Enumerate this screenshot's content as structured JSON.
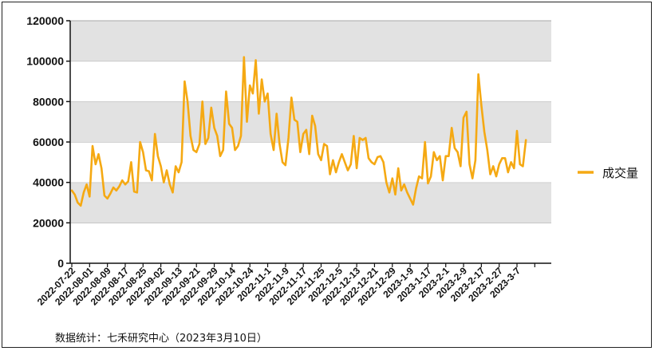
{
  "chart_data": {
    "type": "line",
    "title": "",
    "xlabel": "",
    "ylabel": "",
    "ylim": [
      0,
      120000
    ],
    "yticks": [
      0,
      20000,
      40000,
      60000,
      80000,
      100000,
      120000
    ],
    "grid": "horizontal bands (alternating gray/white)",
    "legend_position": "right",
    "x_tick_labels": [
      "2022-07-22",
      "2022-08-01",
      "2022-08-09",
      "2022-08-17",
      "2022-08-25",
      "2022-09-02",
      "2022-09-13",
      "2022-09-21",
      "2022-09-29",
      "2022-10-14",
      "2022-10-24",
      "2022-11-1",
      "2022-11-9",
      "2022-11-17",
      "2022-11-25",
      "2022-12-5",
      "2022-12-13",
      "2022-12-21",
      "2022-12-29",
      "2023-1-9",
      "2023-1-17",
      "2023-2-1",
      "2023-2-9",
      "2023-2-17",
      "2023-2-27",
      "2023-3-7"
    ],
    "x_tick_spacing_points": 6,
    "series": [
      {
        "name": "成交量",
        "color": "#f5a913",
        "values": [
          36000,
          34000,
          30000,
          28500,
          35000,
          39000,
          33000,
          58000,
          49000,
          54000,
          47000,
          33500,
          32000,
          34500,
          37500,
          36000,
          38000,
          41000,
          39000,
          40500,
          50000,
          35500,
          35000,
          60000,
          55000,
          46000,
          45500,
          41000,
          64000,
          53000,
          48000,
          40000,
          46000,
          39000,
          35000,
          48000,
          45000,
          50000,
          90000,
          80000,
          63000,
          56000,
          55000,
          59000,
          80000,
          59000,
          62000,
          77000,
          67000,
          63000,
          53000,
          56000,
          85000,
          69000,
          67000,
          56000,
          58000,
          63000,
          102000,
          70000,
          88000,
          84000,
          100500,
          74000,
          91000,
          80000,
          84000,
          64000,
          56000,
          74000,
          59000,
          50000,
          48500,
          62000,
          82000,
          71000,
          70000,
          55000,
          64000,
          66000,
          54000,
          73000,
          68000,
          54000,
          51000,
          59000,
          58000,
          44000,
          51000,
          45000,
          50000,
          54000,
          50000,
          46000,
          49000,
          63000,
          47000,
          62000,
          61000,
          62000,
          52000,
          50000,
          49000,
          52500,
          53000,
          50000,
          40000,
          35000,
          42000,
          34000,
          47000,
          36000,
          39000,
          35000,
          32000,
          29000,
          37000,
          43000,
          42000,
          60000,
          39500,
          43000,
          55000,
          51000,
          53000,
          41000,
          53000,
          53000,
          67000,
          57000,
          55000,
          48000,
          72000,
          75000,
          49000,
          42000,
          51000,
          93500,
          78000,
          65000,
          56000,
          44000,
          48000,
          43000,
          49000,
          52000,
          52000,
          45000,
          50000,
          47000,
          65500,
          49000,
          48000,
          61000
        ]
      }
    ]
  },
  "footer": {
    "source": "数据统计：七禾研究中心（2023年3月10日）"
  }
}
